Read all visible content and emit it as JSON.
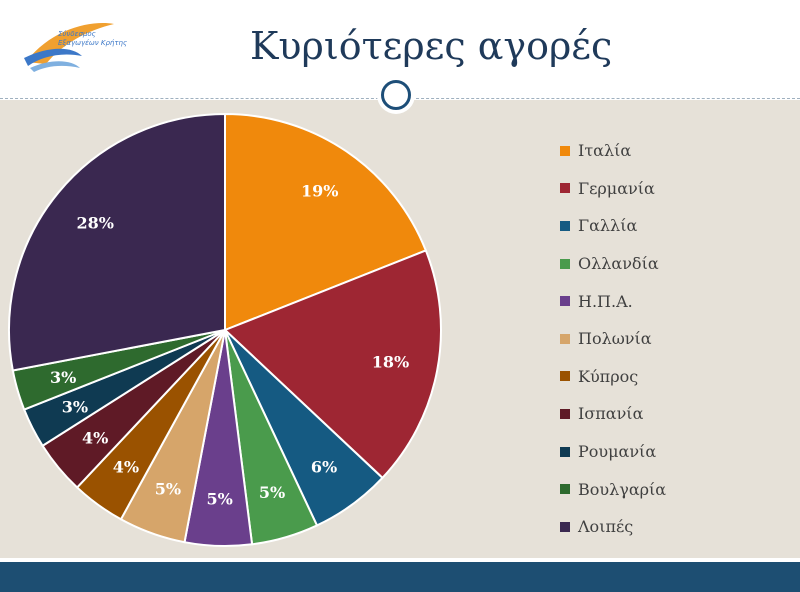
{
  "header": {
    "title": "Κυριότερες αγορές",
    "logo_text": "Σύνδεσμος\nΕξαγωγέων Κρήτης"
  },
  "colors": {
    "content_bg": "#e6e1d8",
    "footer": "#1d4e72",
    "title": "#1f3a5a"
  },
  "chart_data": {
    "type": "pie",
    "title": "",
    "slices": [
      {
        "name": "Ιταλία",
        "value": 19,
        "label": "19%",
        "color": "#f0890c"
      },
      {
        "name": "Γερμανία",
        "value": 18,
        "label": "18%",
        "color": "#9e2633"
      },
      {
        "name": "Γαλλία",
        "value": 6,
        "label": "6%",
        "color": "#155a82"
      },
      {
        "name": "Ολλανδία",
        "value": 5,
        "label": "5%",
        "color": "#4a9b4c"
      },
      {
        "name": "Η.Π.Α.",
        "value": 5,
        "label": "5%",
        "color": "#6a3f8c"
      },
      {
        "name": "Πολωνία",
        "value": 5,
        "label": "5%",
        "color": "#d6a56a"
      },
      {
        "name": "Κύπρος",
        "value": 4,
        "label": "4%",
        "color": "#9a5200"
      },
      {
        "name": "Ισπανία",
        "value": 4,
        "label": "4%",
        "color": "#5f1a26"
      },
      {
        "name": "Ρουμανία",
        "value": 3,
        "label": "3%",
        "color": "#0f3a52"
      },
      {
        "name": "Βουλγαρία",
        "value": 3,
        "label": "3%",
        "color": "#2e6a2e"
      },
      {
        "name": "Λοιπές",
        "value": 28,
        "label": "28%",
        "color": "#3a2850"
      }
    ],
    "legend_position": "right"
  }
}
